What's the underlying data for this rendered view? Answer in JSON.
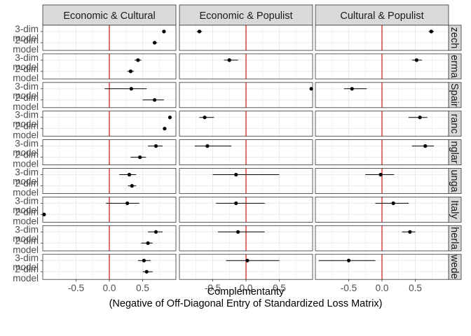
{
  "chart_data": {
    "type": "scatter",
    "subtype": "faceted-dot-and-interval",
    "xlabel_line1": "Complementarity",
    "xlabel_line2": "(Negative of Off-Diagonal Entry of Standardized Loss Matrix)",
    "xlim": [
      -1.0,
      1.0
    ],
    "x_ticks": [
      -0.5,
      0.0,
      0.5
    ],
    "x_tick_labels": [
      "-0.5",
      "0.0",
      "0.5"
    ],
    "reference_line_x": 0,
    "reference_line_color": "#cc0000",
    "grid": true,
    "panel_background": "#ffffff",
    "gridline_color": "#ebebeb",
    "strip_background": "#d9d9d9",
    "point_color": "#000000",
    "y_categories": [
      "3-dim model",
      "2-dim model"
    ],
    "y_tick_lines": [
      [
        "3-dim",
        "model"
      ],
      [
        "2-dim",
        "model"
      ]
    ],
    "columns": [
      "Economic & Cultural",
      "Economic & Populist",
      "Cultural & Populist"
    ],
    "rows": [
      "Czech",
      "Germany",
      "Spain",
      "France",
      "England",
      "Hungary",
      "Italy",
      "Netherlands",
      "Sweden"
    ],
    "row_labels_visible": [
      "zech",
      "erma",
      "Spair",
      "ranc",
      "nglar",
      "unga",
      "Italy",
      "herla",
      "wede"
    ],
    "panels": [
      {
        "row": "Czech",
        "column": "Economic & Cultural",
        "points": [
          {
            "model": "3-dim model",
            "x": 0.82,
            "lo": 0.82,
            "hi": 0.82
          },
          {
            "model": "2-dim model",
            "x": 0.68,
            "lo": 0.65,
            "hi": 0.72
          }
        ]
      },
      {
        "row": "Czech",
        "column": "Economic & Populist",
        "points": [
          {
            "model": "3-dim model",
            "x": -0.7,
            "lo": -0.74,
            "hi": -0.66
          }
        ]
      },
      {
        "row": "Czech",
        "column": "Cultural & Populist",
        "points": [
          {
            "model": "3-dim model",
            "x": 0.74,
            "lo": 0.7,
            "hi": 0.78
          }
        ]
      },
      {
        "row": "Germany",
        "column": "Economic & Cultural",
        "points": [
          {
            "model": "3-dim model",
            "x": 0.43,
            "lo": 0.38,
            "hi": 0.48
          },
          {
            "model": "2-dim model",
            "x": 0.32,
            "lo": 0.27,
            "hi": 0.37
          }
        ]
      },
      {
        "row": "Germany",
        "column": "Economic & Populist",
        "points": [
          {
            "model": "3-dim model",
            "x": -0.25,
            "lo": -0.33,
            "hi": -0.12
          }
        ]
      },
      {
        "row": "Germany",
        "column": "Cultural & Populist",
        "points": [
          {
            "model": "3-dim model",
            "x": 0.52,
            "lo": 0.45,
            "hi": 0.6
          }
        ]
      },
      {
        "row": "Spain",
        "column": "Economic & Cultural",
        "points": [
          {
            "model": "3-dim model",
            "x": 0.33,
            "lo": -0.07,
            "hi": 0.56
          },
          {
            "model": "2-dim model",
            "x": 0.68,
            "lo": 0.5,
            "hi": 0.82
          }
        ]
      },
      {
        "row": "Spain",
        "column": "Economic & Populist",
        "points": [
          {
            "model": "3-dim model",
            "x": 0.98,
            "lo": 0.98,
            "hi": 0.98
          }
        ]
      },
      {
        "row": "Spain",
        "column": "Cultural & Populist",
        "points": [
          {
            "model": "3-dim model",
            "x": -0.45,
            "lo": -0.57,
            "hi": -0.23
          }
        ]
      },
      {
        "row": "France",
        "column": "Economic & Cultural",
        "points": [
          {
            "model": "3-dim model",
            "x": 0.91,
            "lo": 0.89,
            "hi": 0.93
          },
          {
            "model": "2-dim model",
            "x": 0.83,
            "lo": 0.82,
            "hi": 0.84
          }
        ]
      },
      {
        "row": "France",
        "column": "Economic & Populist",
        "points": [
          {
            "model": "3-dim model",
            "x": -0.62,
            "lo": -0.7,
            "hi": -0.48
          }
        ]
      },
      {
        "row": "France",
        "column": "Cultural & Populist",
        "points": [
          {
            "model": "3-dim model",
            "x": 0.57,
            "lo": 0.4,
            "hi": 0.68
          }
        ]
      },
      {
        "row": "England",
        "column": "Economic & Cultural",
        "points": [
          {
            "model": "3-dim model",
            "x": 0.7,
            "lo": 0.58,
            "hi": 0.8
          },
          {
            "model": "2-dim model",
            "x": 0.46,
            "lo": 0.32,
            "hi": 0.55
          }
        ]
      },
      {
        "row": "England",
        "column": "Economic & Populist",
        "points": [
          {
            "model": "3-dim model",
            "x": -0.58,
            "lo": -0.77,
            "hi": -0.22
          }
        ]
      },
      {
        "row": "England",
        "column": "Cultural & Populist",
        "points": [
          {
            "model": "3-dim model",
            "x": 0.65,
            "lo": 0.45,
            "hi": 0.78
          }
        ]
      },
      {
        "row": "Hungary",
        "column": "Economic & Cultural",
        "points": [
          {
            "model": "3-dim model",
            "x": 0.3,
            "lo": 0.15,
            "hi": 0.4
          },
          {
            "model": "2-dim model",
            "x": 0.34,
            "lo": 0.28,
            "hi": 0.4
          }
        ]
      },
      {
        "row": "Hungary",
        "column": "Economic & Populist",
        "points": [
          {
            "model": "3-dim model",
            "x": -0.15,
            "lo": -0.5,
            "hi": 0.5
          }
        ]
      },
      {
        "row": "Hungary",
        "column": "Cultural & Populist",
        "points": [
          {
            "model": "3-dim model",
            "x": -0.02,
            "lo": -0.25,
            "hi": 0.18
          }
        ]
      },
      {
        "row": "Italy",
        "column": "Economic & Cultural",
        "points": [
          {
            "model": "3-dim model",
            "x": 0.27,
            "lo": -0.05,
            "hi": 0.45
          },
          {
            "model": "2-dim model",
            "x": -0.98,
            "lo": -0.98,
            "hi": -0.98
          }
        ]
      },
      {
        "row": "Italy",
        "column": "Economic & Populist",
        "points": [
          {
            "model": "3-dim model",
            "x": -0.15,
            "lo": -0.45,
            "hi": 0.28
          }
        ]
      },
      {
        "row": "Italy",
        "column": "Cultural & Populist",
        "points": [
          {
            "model": "3-dim model",
            "x": 0.17,
            "lo": -0.1,
            "hi": 0.4
          }
        ]
      },
      {
        "row": "Netherlands",
        "column": "Economic & Cultural",
        "points": [
          {
            "model": "3-dim model",
            "x": 0.7,
            "lo": 0.58,
            "hi": 0.8
          },
          {
            "model": "2-dim model",
            "x": 0.58,
            "lo": 0.48,
            "hi": 0.65
          }
        ]
      },
      {
        "row": "Netherlands",
        "column": "Economic & Populist",
        "points": [
          {
            "model": "3-dim model",
            "x": -0.12,
            "lo": -0.42,
            "hi": 0.28
          }
        ]
      },
      {
        "row": "Netherlands",
        "column": "Cultural & Populist",
        "points": [
          {
            "model": "3-dim model",
            "x": 0.42,
            "lo": 0.3,
            "hi": 0.5
          }
        ]
      },
      {
        "row": "Sweden",
        "column": "Economic & Cultural",
        "points": [
          {
            "model": "3-dim model",
            "x": 0.52,
            "lo": 0.43,
            "hi": 0.62
          },
          {
            "model": "2-dim model",
            "x": 0.56,
            "lo": 0.5,
            "hi": 0.65
          }
        ]
      },
      {
        "row": "Sweden",
        "column": "Economic & Populist",
        "points": [
          {
            "model": "3-dim model",
            "x": 0.02,
            "lo": -0.3,
            "hi": 0.5
          }
        ]
      },
      {
        "row": "Sweden",
        "column": "Cultural & Populist",
        "points": [
          {
            "model": "3-dim model",
            "x": -0.5,
            "lo": -0.95,
            "hi": -0.1
          }
        ]
      }
    ]
  }
}
